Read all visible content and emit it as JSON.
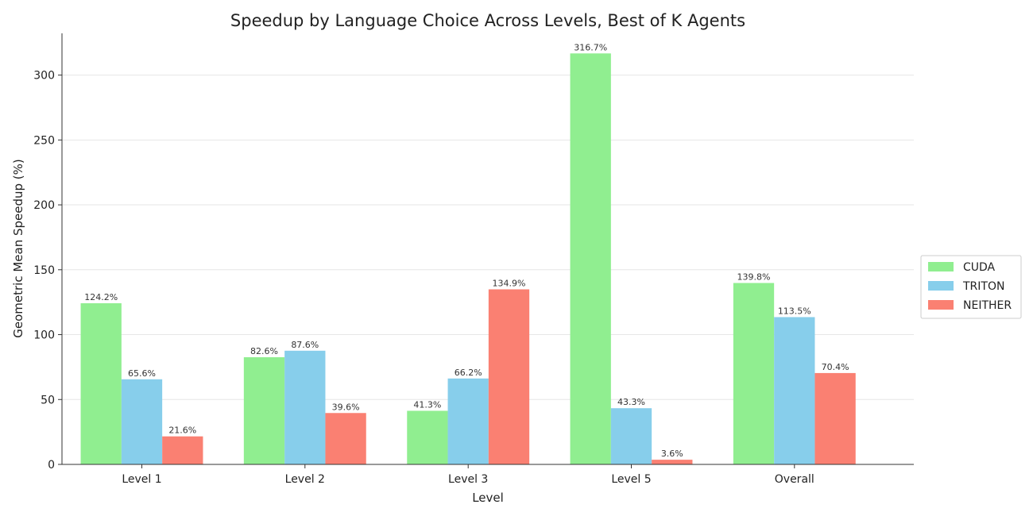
{
  "chart_data": {
    "type": "bar",
    "title": "Speedup by Language Choice Across Levels, Best of K Agents",
    "xlabel": "Level",
    "ylabel": "Geometric Mean Speedup (%)",
    "categories": [
      "Level 1",
      "Level 2",
      "Level 3",
      "Level 5",
      "Overall"
    ],
    "series": [
      {
        "name": "CUDA",
        "color": "#90ee90",
        "values": [
          124.2,
          82.6,
          41.3,
          316.7,
          139.8
        ]
      },
      {
        "name": "TRITON",
        "color": "#87ceeb",
        "values": [
          65.6,
          87.6,
          66.2,
          43.3,
          113.5
        ]
      },
      {
        "name": "NEITHER",
        "color": "#fa8072",
        "values": [
          21.6,
          39.6,
          134.9,
          3.6,
          70.4
        ]
      }
    ],
    "value_suffix": "%",
    "yticks": [
      0,
      50,
      100,
      150,
      200,
      250,
      300
    ],
    "ylim": [
      0,
      333
    ],
    "grid": "horizontal",
    "legend_position": "right"
  }
}
